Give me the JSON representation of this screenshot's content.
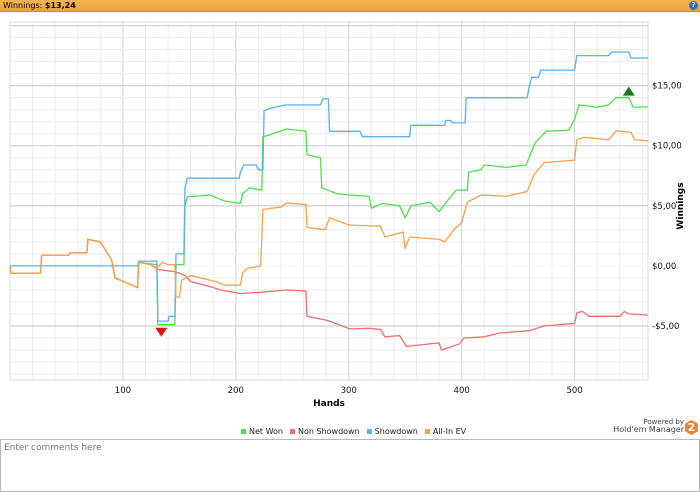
{
  "header": {
    "label": "Winnings:",
    "value": "$13,24",
    "help_icon": "help-icon"
  },
  "chart_data": {
    "type": "line",
    "title": "",
    "xlabel": "Hands",
    "ylabel": "Winnings",
    "xlim": [
      0,
      565
    ],
    "ylim": [
      -9.5,
      20.3
    ],
    "xticks": [
      100,
      200,
      300,
      400,
      500
    ],
    "xtick_labels": [
      "100",
      "200",
      "300",
      "400",
      "500"
    ],
    "yticks": [
      -5,
      0,
      5,
      10,
      15
    ],
    "ytick_labels": [
      "-$5,00",
      "$0,00",
      "$5,00",
      "$10,00",
      "$15,00"
    ],
    "grid": true,
    "legend_position": "bottom",
    "series": [
      {
        "name": "Net Won",
        "color": "#4fe04f",
        "points": [
          [
            0,
            0
          ],
          [
            1,
            -0.6
          ],
          [
            27,
            -0.6
          ],
          [
            28,
            0.9
          ],
          [
            52,
            0.9
          ],
          [
            53,
            1.1
          ],
          [
            68,
            1.1
          ],
          [
            69,
            2.2
          ],
          [
            80,
            2.0
          ],
          [
            90,
            0.5
          ],
          [
            93,
            -1
          ],
          [
            113,
            -1.8
          ],
          [
            114,
            0.3
          ],
          [
            130,
            0.1
          ],
          [
            131,
            -4.9
          ],
          [
            146,
            -4.9
          ],
          [
            147,
            0.1
          ],
          [
            154,
            0.1
          ],
          [
            155,
            5.0
          ],
          [
            157,
            5.75
          ],
          [
            177,
            5.9
          ],
          [
            190,
            5.4
          ],
          [
            204,
            5.2
          ],
          [
            206,
            6.0
          ],
          [
            212,
            6.5
          ],
          [
            223,
            6.3
          ],
          [
            224,
            10.75
          ],
          [
            230,
            10.9
          ],
          [
            245,
            11.4
          ],
          [
            262,
            11.2
          ],
          [
            263,
            9.25
          ],
          [
            275,
            9.0
          ],
          [
            276,
            6.5
          ],
          [
            290,
            6.0
          ],
          [
            300,
            5.9
          ],
          [
            318,
            5.8
          ],
          [
            320,
            4.8
          ],
          [
            330,
            5.2
          ],
          [
            345,
            5.0
          ],
          [
            350,
            4.0
          ],
          [
            355,
            5.0
          ],
          [
            372,
            5.3
          ],
          [
            380,
            4.5
          ],
          [
            388,
            5.5
          ],
          [
            395,
            6.3
          ],
          [
            405,
            6.3
          ],
          [
            406,
            7.8
          ],
          [
            417,
            8.0
          ],
          [
            420,
            8.4
          ],
          [
            440,
            8.2
          ],
          [
            457,
            8.4
          ],
          [
            465,
            10.25
          ],
          [
            475,
            11.2
          ],
          [
            495,
            11.3
          ],
          [
            500,
            12.2
          ],
          [
            504,
            13.4
          ],
          [
            520,
            13.2
          ],
          [
            530,
            13.4
          ],
          [
            537,
            14.0
          ],
          [
            548,
            14.0
          ],
          [
            552,
            13.2
          ],
          [
            565,
            13.24
          ]
        ]
      },
      {
        "name": "Non Showdown",
        "color": "#f07070",
        "points": [
          [
            0,
            0
          ],
          [
            1,
            -0.6
          ],
          [
            27,
            -0.6
          ],
          [
            28,
            0.9
          ],
          [
            52,
            0.9
          ],
          [
            53,
            1.1
          ],
          [
            68,
            1.1
          ],
          [
            69,
            2.2
          ],
          [
            80,
            2.0
          ],
          [
            90,
            0.5
          ],
          [
            93,
            -1
          ],
          [
            113,
            -1.8
          ],
          [
            114,
            0.3
          ],
          [
            125,
            0.1
          ],
          [
            131,
            -0.3
          ],
          [
            147,
            -0.5
          ],
          [
            155,
            -0.8
          ],
          [
            160,
            -1.3
          ],
          [
            180,
            -1.8
          ],
          [
            186,
            -2.0
          ],
          [
            204,
            -2.3
          ],
          [
            222,
            -2.2
          ],
          [
            245,
            -2.0
          ],
          [
            262,
            -2.1
          ],
          [
            263,
            -4.2
          ],
          [
            279,
            -4.5
          ],
          [
            283,
            -4.6
          ],
          [
            301,
            -5.25
          ],
          [
            318,
            -5.2
          ],
          [
            328,
            -5.3
          ],
          [
            332,
            -5.9
          ],
          [
            345,
            -5.8
          ],
          [
            351,
            -6.7
          ],
          [
            380,
            -6.4
          ],
          [
            382,
            -7.0
          ],
          [
            398,
            -6.5
          ],
          [
            402,
            -6.0
          ],
          [
            420,
            -5.9
          ],
          [
            433,
            -5.6
          ],
          [
            460,
            -5.4
          ],
          [
            473,
            -5.0
          ],
          [
            500,
            -4.8
          ],
          [
            502,
            -3.9
          ],
          [
            507,
            -3.8
          ],
          [
            513,
            -4.2
          ],
          [
            540,
            -4.2
          ],
          [
            544,
            -3.8
          ],
          [
            548,
            -4.0
          ],
          [
            565,
            -4.1
          ]
        ]
      },
      {
        "name": "Showdown",
        "color": "#5ab0f0",
        "points": [
          [
            0,
            0
          ],
          [
            113,
            0
          ],
          [
            114,
            0.4
          ],
          [
            130,
            0.4
          ],
          [
            131,
            -4.6
          ],
          [
            140,
            -4.6
          ],
          [
            141,
            -4.2
          ],
          [
            146,
            -4.2
          ],
          [
            147,
            1.0
          ],
          [
            154,
            1.0
          ],
          [
            155,
            6.5
          ],
          [
            157,
            7.3
          ],
          [
            203,
            7.3
          ],
          [
            204,
            7.8
          ],
          [
            207,
            8.4
          ],
          [
            218,
            8.4
          ],
          [
            220,
            8.0
          ],
          [
            224,
            8.0
          ],
          [
            225,
            12.9
          ],
          [
            230,
            13.1
          ],
          [
            244,
            13.4
          ],
          [
            275,
            13.4
          ],
          [
            277,
            13.9
          ],
          [
            282,
            13.9
          ],
          [
            283,
            11.2
          ],
          [
            310,
            11.2
          ],
          [
            312,
            10.75
          ],
          [
            354,
            10.75
          ],
          [
            355,
            11.7
          ],
          [
            385,
            11.7
          ],
          [
            386,
            12.1
          ],
          [
            390,
            12.1
          ],
          [
            392,
            11.9
          ],
          [
            403,
            11.9
          ],
          [
            404,
            14.0
          ],
          [
            458,
            14.0
          ],
          [
            460,
            15.0
          ],
          [
            462,
            15.7
          ],
          [
            468,
            15.7
          ],
          [
            470,
            16.3
          ],
          [
            500,
            16.3
          ],
          [
            502,
            17.5
          ],
          [
            530,
            17.5
          ],
          [
            533,
            17.8
          ],
          [
            548,
            17.8
          ],
          [
            550,
            17.3
          ],
          [
            565,
            17.3
          ]
        ]
      },
      {
        "name": "All-In EV",
        "color": "#ffa04a",
        "points": [
          [
            0,
            0
          ],
          [
            1,
            -0.6
          ],
          [
            27,
            -0.6
          ],
          [
            28,
            0.9
          ],
          [
            52,
            0.9
          ],
          [
            53,
            1.1
          ],
          [
            68,
            1.1
          ],
          [
            69,
            2.2
          ],
          [
            80,
            2.0
          ],
          [
            90,
            0.5
          ],
          [
            93,
            -1
          ],
          [
            113,
            -1.8
          ],
          [
            114,
            0.3
          ],
          [
            125,
            0.1
          ],
          [
            130,
            -0.2
          ],
          [
            135,
            0.3
          ],
          [
            140,
            0.1
          ],
          [
            146,
            0.1
          ],
          [
            147,
            -2.6
          ],
          [
            150,
            -2.6
          ],
          [
            152,
            -1.2
          ],
          [
            160,
            -0.8
          ],
          [
            182,
            -1.3
          ],
          [
            190,
            -1.6
          ],
          [
            204,
            -1.6
          ],
          [
            206,
            -0.6
          ],
          [
            210,
            -0.2
          ],
          [
            222,
            0
          ],
          [
            224,
            4.7
          ],
          [
            240,
            4.9
          ],
          [
            245,
            5.25
          ],
          [
            262,
            5.1
          ],
          [
            263,
            3.2
          ],
          [
            279,
            3.0
          ],
          [
            283,
            4.0
          ],
          [
            300,
            3.4
          ],
          [
            328,
            3.3
          ],
          [
            332,
            2.4
          ],
          [
            348,
            2.8
          ],
          [
            350,
            1.5
          ],
          [
            354,
            2.4
          ],
          [
            380,
            2.2
          ],
          [
            385,
            2.0
          ],
          [
            394,
            3.1
          ],
          [
            400,
            3.6
          ],
          [
            405,
            5.3
          ],
          [
            417,
            5.9
          ],
          [
            440,
            5.8
          ],
          [
            458,
            6.2
          ],
          [
            464,
            7.6
          ],
          [
            473,
            8.6
          ],
          [
            500,
            8.8
          ],
          [
            502,
            10.5
          ],
          [
            508,
            10.7
          ],
          [
            530,
            10.5
          ],
          [
            537,
            11.25
          ],
          [
            550,
            11.1
          ],
          [
            553,
            10.5
          ],
          [
            565,
            10.4
          ]
        ]
      }
    ],
    "markers": [
      {
        "name": "max",
        "hand": 548,
        "value": 14.0,
        "shape": "triangle-up",
        "color": "#137a13"
      },
      {
        "name": "min",
        "hand": 134,
        "value": -4.9,
        "shape": "triangle-down",
        "color": "#e01010"
      }
    ]
  },
  "legend": [
    {
      "label": "Net Won",
      "color": "#4fe04f"
    },
    {
      "label": "Non Showdown",
      "color": "#f07070"
    },
    {
      "label": "Showdown",
      "color": "#5ab0f0"
    },
    {
      "label": "All-In EV",
      "color": "#ffa04a"
    }
  ],
  "branding": {
    "powered_by": "Powered by",
    "name": "Hold'em Manager",
    "logo_text": "2"
  },
  "comments": {
    "placeholder": "Enter comments here"
  }
}
